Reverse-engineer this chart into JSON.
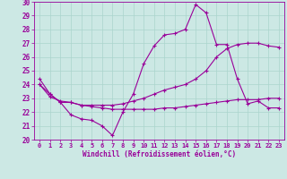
{
  "xlabel": "Windchill (Refroidissement éolien,°C)",
  "bg_color": "#cce8e4",
  "grid_color": "#aad4cc",
  "line_color": "#990099",
  "spine_color": "#660066",
  "ylim": [
    20,
    30
  ],
  "xlim": [
    -0.5,
    23.5
  ],
  "yticks": [
    20,
    21,
    22,
    23,
    24,
    25,
    26,
    27,
    28,
    29,
    30
  ],
  "xticks": [
    0,
    1,
    2,
    3,
    4,
    5,
    6,
    7,
    8,
    9,
    10,
    11,
    12,
    13,
    14,
    15,
    16,
    17,
    18,
    19,
    20,
    21,
    22,
    23
  ],
  "line1_x": [
    0,
    1,
    2,
    3,
    4,
    5,
    6,
    7,
    8,
    9,
    10,
    11,
    12,
    13,
    14,
    15,
    16,
    17,
    18,
    19,
    20,
    21,
    22,
    23
  ],
  "line1_y": [
    24.4,
    23.3,
    22.7,
    21.8,
    21.5,
    21.4,
    21.0,
    20.3,
    22.0,
    23.3,
    25.5,
    26.8,
    27.6,
    27.7,
    28.0,
    29.8,
    29.2,
    26.9,
    26.9,
    24.4,
    22.6,
    22.8,
    22.3,
    22.3
  ],
  "line2_x": [
    0,
    1,
    2,
    3,
    4,
    5,
    6,
    7,
    8,
    9,
    10,
    11,
    12,
    13,
    14,
    15,
    16,
    17,
    18,
    19,
    20,
    21,
    22,
    23
  ],
  "line2_y": [
    24.0,
    23.3,
    22.7,
    22.7,
    22.5,
    22.5,
    22.5,
    22.5,
    22.6,
    22.8,
    23.0,
    23.3,
    23.6,
    23.8,
    24.0,
    24.4,
    25.0,
    26.0,
    26.6,
    26.9,
    27.0,
    27.0,
    26.8,
    26.7
  ],
  "line3_x": [
    0,
    1,
    2,
    3,
    4,
    5,
    6,
    7,
    8,
    9,
    10,
    11,
    12,
    13,
    14,
    15,
    16,
    17,
    18,
    19,
    20,
    21,
    22,
    23
  ],
  "line3_y": [
    24.0,
    23.1,
    22.8,
    22.7,
    22.5,
    22.4,
    22.3,
    22.2,
    22.2,
    22.2,
    22.2,
    22.2,
    22.3,
    22.3,
    22.4,
    22.5,
    22.6,
    22.7,
    22.8,
    22.9,
    22.9,
    22.9,
    23.0,
    23.0
  ],
  "marker": "+",
  "markersize": 3,
  "linewidth": 0.8,
  "tick_fontsize": 5.0,
  "xlabel_fontsize": 5.5
}
